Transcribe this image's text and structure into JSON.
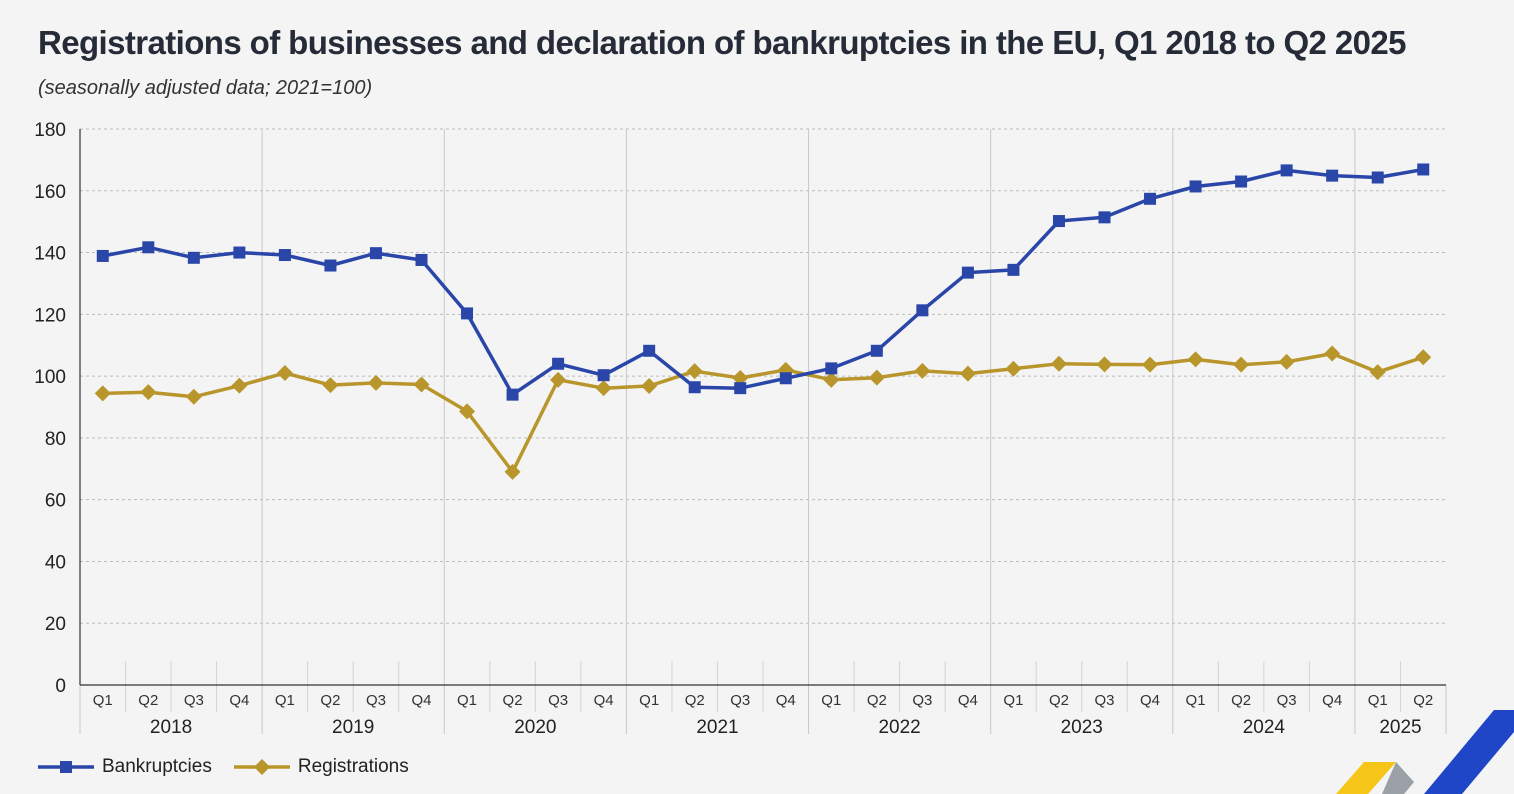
{
  "header": {
    "title": "Registrations of businesses and declaration of bankruptcies in the EU, Q1 2018 to Q2 2025",
    "subtitle": "(seasonally adjusted data; 2021=100)"
  },
  "colors": {
    "bankruptcies": "#2a46a8",
    "registrations": "#b8962b",
    "grid": "#bbbbbb",
    "axis": "#333333",
    "logo_yellow": "#f5c518",
    "logo_blue": "#1e46c6",
    "logo_grey": "#9aa0a6"
  },
  "chart_data": {
    "type": "line",
    "title": "Registrations of businesses and declaration of bankruptcies in the EU, Q1 2018 to Q2 2025",
    "subtitle": "(seasonally adjusted data; 2021=100)",
    "xlabel": "",
    "ylabel": "",
    "ylim": [
      0,
      180
    ],
    "yticks": [
      0,
      20,
      40,
      60,
      80,
      100,
      120,
      140,
      160,
      180
    ],
    "grid": true,
    "legend_position": "bottom-left",
    "years": [
      "2018",
      "2019",
      "2020",
      "2021",
      "2022",
      "2023",
      "2024",
      "2025"
    ],
    "quarters": [
      "Q1",
      "Q2",
      "Q3",
      "Q4",
      "Q1",
      "Q2",
      "Q3",
      "Q4",
      "Q1",
      "Q2",
      "Q3",
      "Q4",
      "Q1",
      "Q2",
      "Q3",
      "Q4",
      "Q1",
      "Q2",
      "Q3",
      "Q4",
      "Q1",
      "Q2",
      "Q3",
      "Q4",
      "Q1",
      "Q2",
      "Q3",
      "Q4",
      "Q1",
      "Q2"
    ],
    "series": [
      {
        "name": "Bankruptcies",
        "marker": "square",
        "values": [
          138.9,
          141.7,
          138.3,
          140.0,
          139.2,
          135.8,
          139.8,
          137.6,
          120.3,
          94.0,
          104.0,
          100.3,
          108.2,
          96.4,
          96.1,
          99.3,
          102.5,
          108.2,
          121.3,
          133.5,
          134.4,
          150.2,
          151.4,
          157.4,
          161.4,
          163.0,
          166.6,
          164.9,
          164.3,
          166.9
        ]
      },
      {
        "name": "Registrations",
        "marker": "diamond",
        "values": [
          94.4,
          94.8,
          93.3,
          96.9,
          101.0,
          97.1,
          97.8,
          97.3,
          88.6,
          69.0,
          98.8,
          96.1,
          96.8,
          101.6,
          99.4,
          102.0,
          98.8,
          99.5,
          101.7,
          100.8,
          102.4,
          104.0,
          103.8,
          103.7,
          105.4,
          103.7,
          104.6,
          107.3,
          101.3,
          106.1
        ]
      }
    ]
  }
}
